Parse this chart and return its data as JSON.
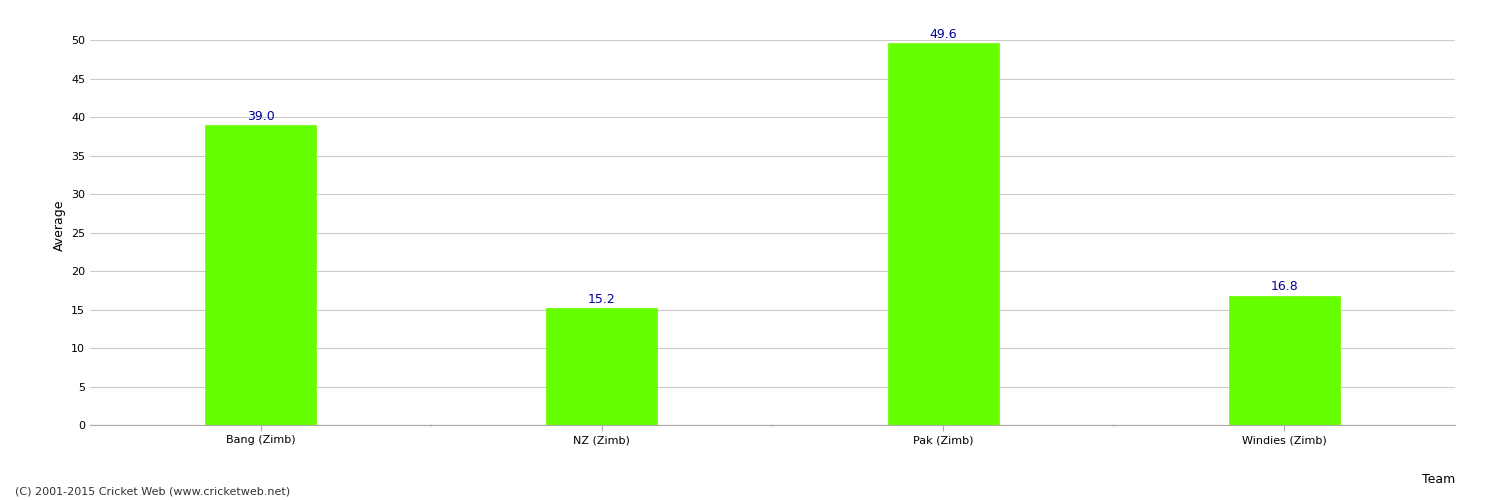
{
  "categories": [
    "Bang (Zimb)",
    "NZ (Zimb)",
    "Pak (Zimb)",
    "Windies (Zimb)"
  ],
  "values": [
    39.0,
    15.2,
    49.6,
    16.8
  ],
  "bar_color": "#66ff00",
  "bar_edge_color": "#66ff00",
  "xlabel": "Team",
  "ylabel": "Average",
  "ylim": [
    0,
    52
  ],
  "yticks": [
    0,
    5,
    10,
    15,
    20,
    25,
    30,
    35,
    40,
    45,
    50
  ],
  "annotation_color": "#000099",
  "annotation_fontsize": 9,
  "axis_label_fontsize": 9,
  "tick_fontsize": 8,
  "background_color": "#ffffff",
  "grid_color": "#cccccc",
  "footer_text": "(C) 2001-2015 Cricket Web (www.cricketweb.net)",
  "footer_fontsize": 8,
  "footer_color": "#333333",
  "bar_width": 0.65
}
